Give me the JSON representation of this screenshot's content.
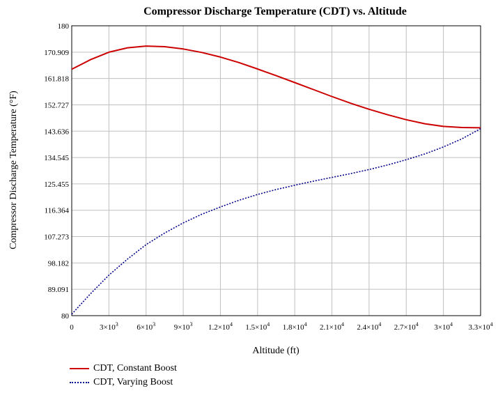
{
  "chart_data": {
    "type": "line",
    "title": "Compressor Discharge Temperature (CDT) vs. Altitude",
    "xlabel": "Altitude (ft)",
    "ylabel": "Compressor Discharge Temperature (°F)",
    "xlim": [
      0,
      33000
    ],
    "ylim": [
      80,
      180
    ],
    "grid": true,
    "legend_position": "bottom-left",
    "x_ticks": [
      {
        "value": 0,
        "mant": "0",
        "exp": ""
      },
      {
        "value": 3000,
        "mant": "3×10",
        "exp": "3"
      },
      {
        "value": 6000,
        "mant": "6×10",
        "exp": "3"
      },
      {
        "value": 9000,
        "mant": "9×10",
        "exp": "3"
      },
      {
        "value": 12000,
        "mant": "1.2×10",
        "exp": "4"
      },
      {
        "value": 15000,
        "mant": "1.5×10",
        "exp": "4"
      },
      {
        "value": 18000,
        "mant": "1.8×10",
        "exp": "4"
      },
      {
        "value": 21000,
        "mant": "2.1×10",
        "exp": "4"
      },
      {
        "value": 24000,
        "mant": "2.4×10",
        "exp": "4"
      },
      {
        "value": 27000,
        "mant": "2.7×10",
        "exp": "4"
      },
      {
        "value": 30000,
        "mant": "3×10",
        "exp": "4"
      },
      {
        "value": 33000,
        "mant": "3.3×10",
        "exp": "4"
      }
    ],
    "y_ticks": [
      {
        "value": 180,
        "label": "180"
      },
      {
        "value": 170.909,
        "label": "170.909"
      },
      {
        "value": 161.818,
        "label": "161.818"
      },
      {
        "value": 152.727,
        "label": "152.727"
      },
      {
        "value": 143.636,
        "label": "143.636"
      },
      {
        "value": 134.545,
        "label": "134.545"
      },
      {
        "value": 125.455,
        "label": "125.455"
      },
      {
        "value": 116.364,
        "label": "116.364"
      },
      {
        "value": 107.273,
        "label": "107.273"
      },
      {
        "value": 98.182,
        "label": "98.182"
      },
      {
        "value": 89.091,
        "label": "89.091"
      },
      {
        "value": 80,
        "label": "80"
      }
    ],
    "series": [
      {
        "name": "CDT, Constant Boost",
        "color": "#cc0000",
        "dash": "solid",
        "x": [
          0,
          1500,
          3000,
          4500,
          6000,
          7500,
          9000,
          10500,
          12000,
          13500,
          15000,
          16500,
          18000,
          19500,
          21000,
          22500,
          24000,
          25500,
          27000,
          28500,
          30000,
          31500,
          33000
        ],
        "y": [
          165.0,
          168.3,
          170.9,
          172.4,
          173.0,
          172.8,
          172.0,
          170.8,
          169.2,
          167.3,
          165.1,
          162.8,
          160.4,
          158.0,
          155.6,
          153.3,
          151.2,
          149.3,
          147.6,
          146.2,
          145.3,
          144.9,
          144.8
        ]
      },
      {
        "name": "CDT, Varying Boost",
        "color": "#00008b",
        "dash": "dotted",
        "x": [
          0,
          1500,
          3000,
          4500,
          6000,
          7500,
          9000,
          10500,
          12000,
          13500,
          15000,
          16500,
          18000,
          19500,
          21000,
          22500,
          24000,
          25500,
          27000,
          28500,
          30000,
          31500,
          33000
        ],
        "y": [
          80.5,
          87.5,
          94.0,
          99.5,
          104.5,
          108.5,
          112.0,
          115.0,
          117.5,
          119.8,
          121.8,
          123.5,
          125.0,
          126.4,
          127.7,
          129.0,
          130.4,
          132.0,
          133.8,
          135.8,
          138.2,
          141.0,
          144.5
        ]
      }
    ]
  }
}
